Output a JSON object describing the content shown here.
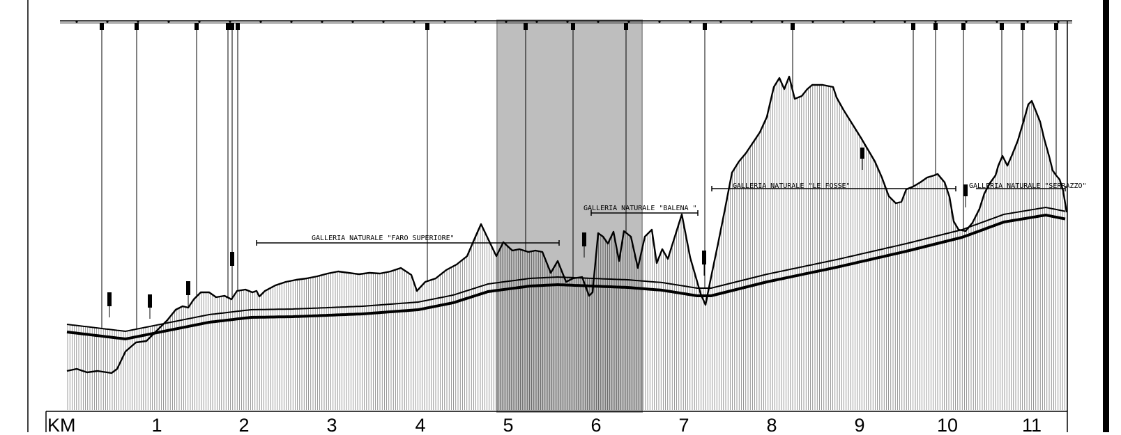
{
  "profile": {
    "km_label": "KM",
    "km_marks": [
      "1",
      "2",
      "3",
      "4",
      "5",
      "6",
      "7",
      "8",
      "9",
      "10",
      "11"
    ],
    "galleries": [
      {
        "label": "GALLERIA  NATURALE  \"FARO  SUPERIORE\""
      },
      {
        "label": "GALLERIA   NATURALE  \"BALENA  \""
      },
      {
        "label": "GALLERIA  NATURALE  \"LE FOSSE\""
      },
      {
        "label": "GALLERIA  NATURALE  \"SERRAZZO\""
      }
    ],
    "highlight_section": "5 - 6",
    "colors": {
      "ink": "#000000",
      "highlight": "#b9b9b9",
      "hatch": "#555555"
    }
  }
}
